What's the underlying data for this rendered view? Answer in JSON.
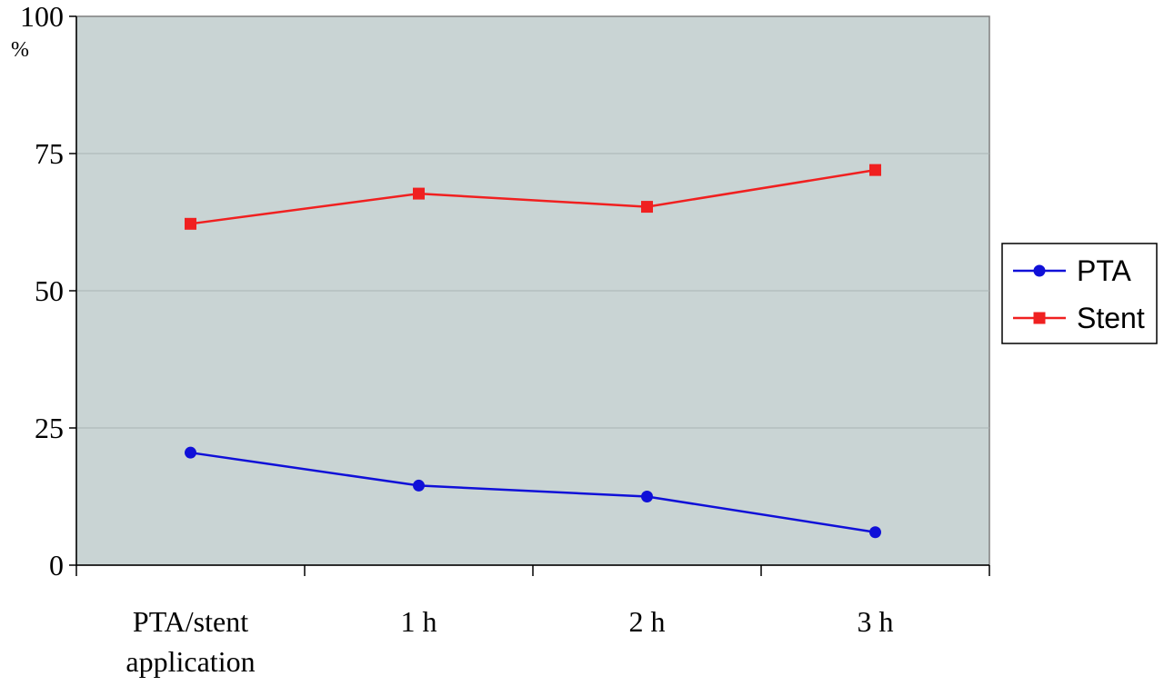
{
  "chart_data": {
    "type": "line",
    "categories": [
      "PTA/stent application",
      "1 h",
      "2 h",
      "3 h"
    ],
    "category_lines": [
      [
        "PTA/stent",
        "application"
      ],
      [
        "1 h"
      ],
      [
        "2 h"
      ],
      [
        "3 h"
      ]
    ],
    "series": [
      {
        "name": "PTA",
        "values": [
          20.5,
          14.5,
          12.5,
          6.0
        ],
        "color": "#1010d8",
        "marker": "circle"
      },
      {
        "name": "Stent",
        "values": [
          62.2,
          67.7,
          65.3,
          72.0
        ],
        "color": "#f02020",
        "marker": "square"
      }
    ],
    "ylim": [
      0,
      100
    ],
    "yticks": [
      0,
      25,
      50,
      75,
      100
    ],
    "y_unit_label": "%",
    "grid": true,
    "legend_position": "right",
    "plot_background": "#c9d4d4",
    "gridline_color": "#a9b4b4"
  }
}
